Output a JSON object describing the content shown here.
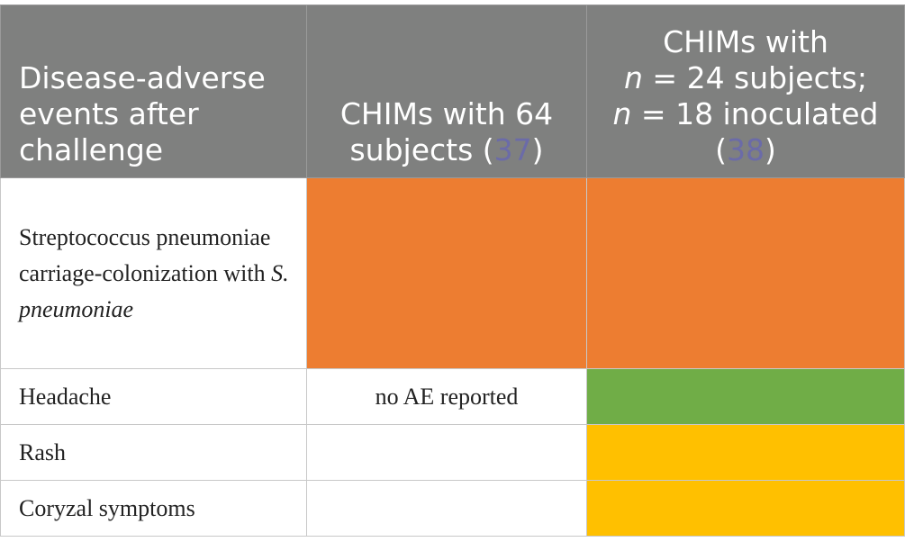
{
  "header": {
    "col1": "Disease-adverse events after challenge",
    "col2_prefix": "CHIMs with 64 subjects (",
    "col2_ref": "37",
    "col2_suffix": ")",
    "col3_line1": "CHIMs with",
    "col3_n1": "n",
    "col3_line2_rest": " = 24 subjects;",
    "col3_n2": "n",
    "col3_line3_rest": " = 18 inoculated",
    "col3_open": "(",
    "col3_ref": "38",
    "col3_close": ")"
  },
  "rows": [
    {
      "label_part1": "Streptococcus pneumoniae carriage-colonization with ",
      "label_italic": "S. pneumoniae",
      "col2_text": "",
      "col2_color": "#ed7d31",
      "col3_color": "#ed7d31"
    },
    {
      "label": "Headache",
      "col2_text": "no AE reported",
      "col2_color": "#ffffff",
      "col3_color": "#70ad47"
    },
    {
      "label": "Rash",
      "col2_text": "",
      "col2_color": "#ffffff",
      "col3_color": "#ffc000"
    },
    {
      "label": "Coryzal symptoms",
      "col2_text": "",
      "col2_color": "#ffffff",
      "col3_color": "#ffc000"
    }
  ]
}
